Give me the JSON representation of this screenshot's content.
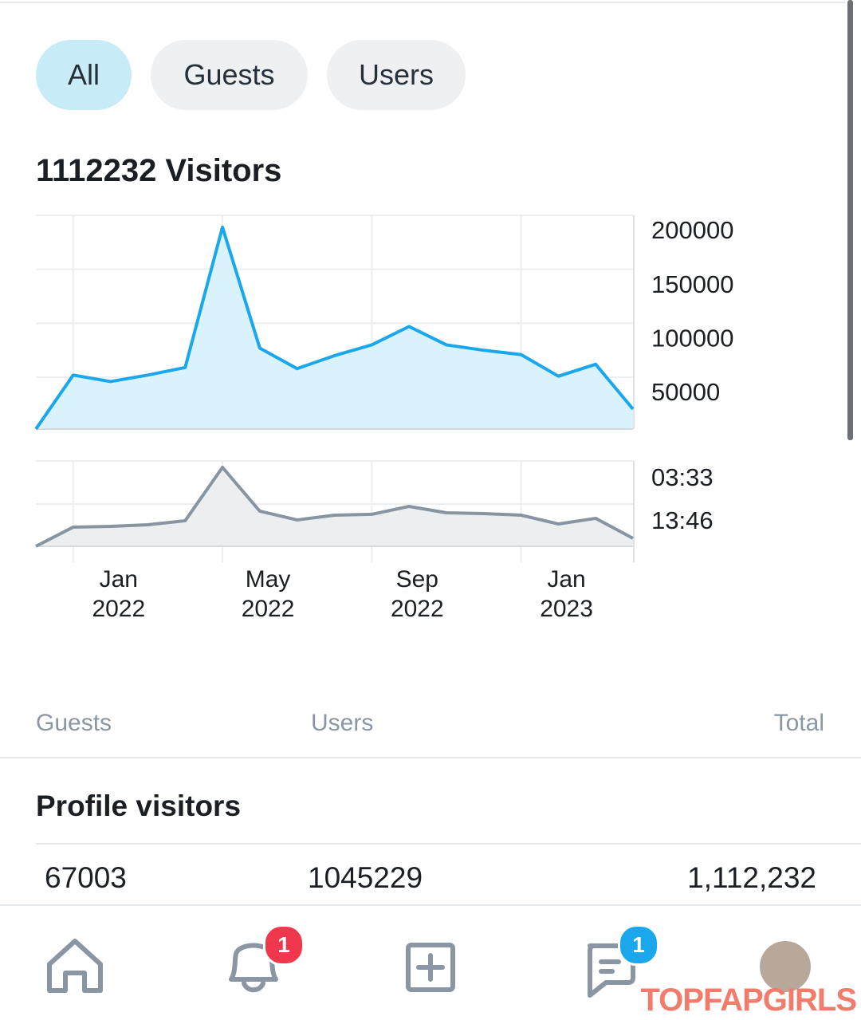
{
  "tabs": [
    "All",
    "Guests",
    "Users"
  ],
  "chart_data": [
    {
      "type": "line",
      "title": "1112232 Visitors",
      "series": [
        {
          "color": "#1aa7ec",
          "fill": "#d9f2fb",
          "values": [
            2000,
            52000,
            46000,
            52000,
            59000,
            189000,
            77000,
            58000,
            70000,
            80000,
            97000,
            80000,
            75000,
            71000,
            51000,
            62000,
            20500
          ]
        }
      ],
      "ylim": [
        2000,
        200000
      ],
      "yticks": [
        50000,
        100000,
        150000,
        200000
      ],
      "grid": true
    },
    {
      "type": "line",
      "categories": [
        null,
        [
          "Jan",
          "2022"
        ],
        null,
        null,
        null,
        [
          "May",
          "2022"
        ],
        null,
        null,
        null,
        [
          "Sep",
          "2022"
        ],
        null,
        null,
        null,
        [
          "Jan",
          "2023"
        ],
        null,
        null,
        null
      ],
      "series": [
        {
          "color": "#8795a3",
          "fill": "#eceeef",
          "values": [
            1428,
            1155,
            1144,
            1121,
            1064,
            304,
            928,
            1053,
            985,
            973,
            860,
            951,
            962,
            985,
            1110,
            1030,
            1314
          ]
        }
      ],
      "ylim": [
        1428,
        213
      ],
      "yticks": [
        {
          "value": 213,
          "label": "03:33"
        },
        {
          "value": 826,
          "label": "13:46"
        }
      ],
      "grid": true
    }
  ],
  "table": {
    "columns": [
      "Guests",
      "Users",
      "Total"
    ],
    "section": "Profile visitors",
    "row": [
      "67003",
      "1045229",
      "1,112,232"
    ]
  },
  "nav": {
    "badges": [
      "1",
      "1"
    ]
  },
  "watermark": "TOPFAPGIRLS"
}
